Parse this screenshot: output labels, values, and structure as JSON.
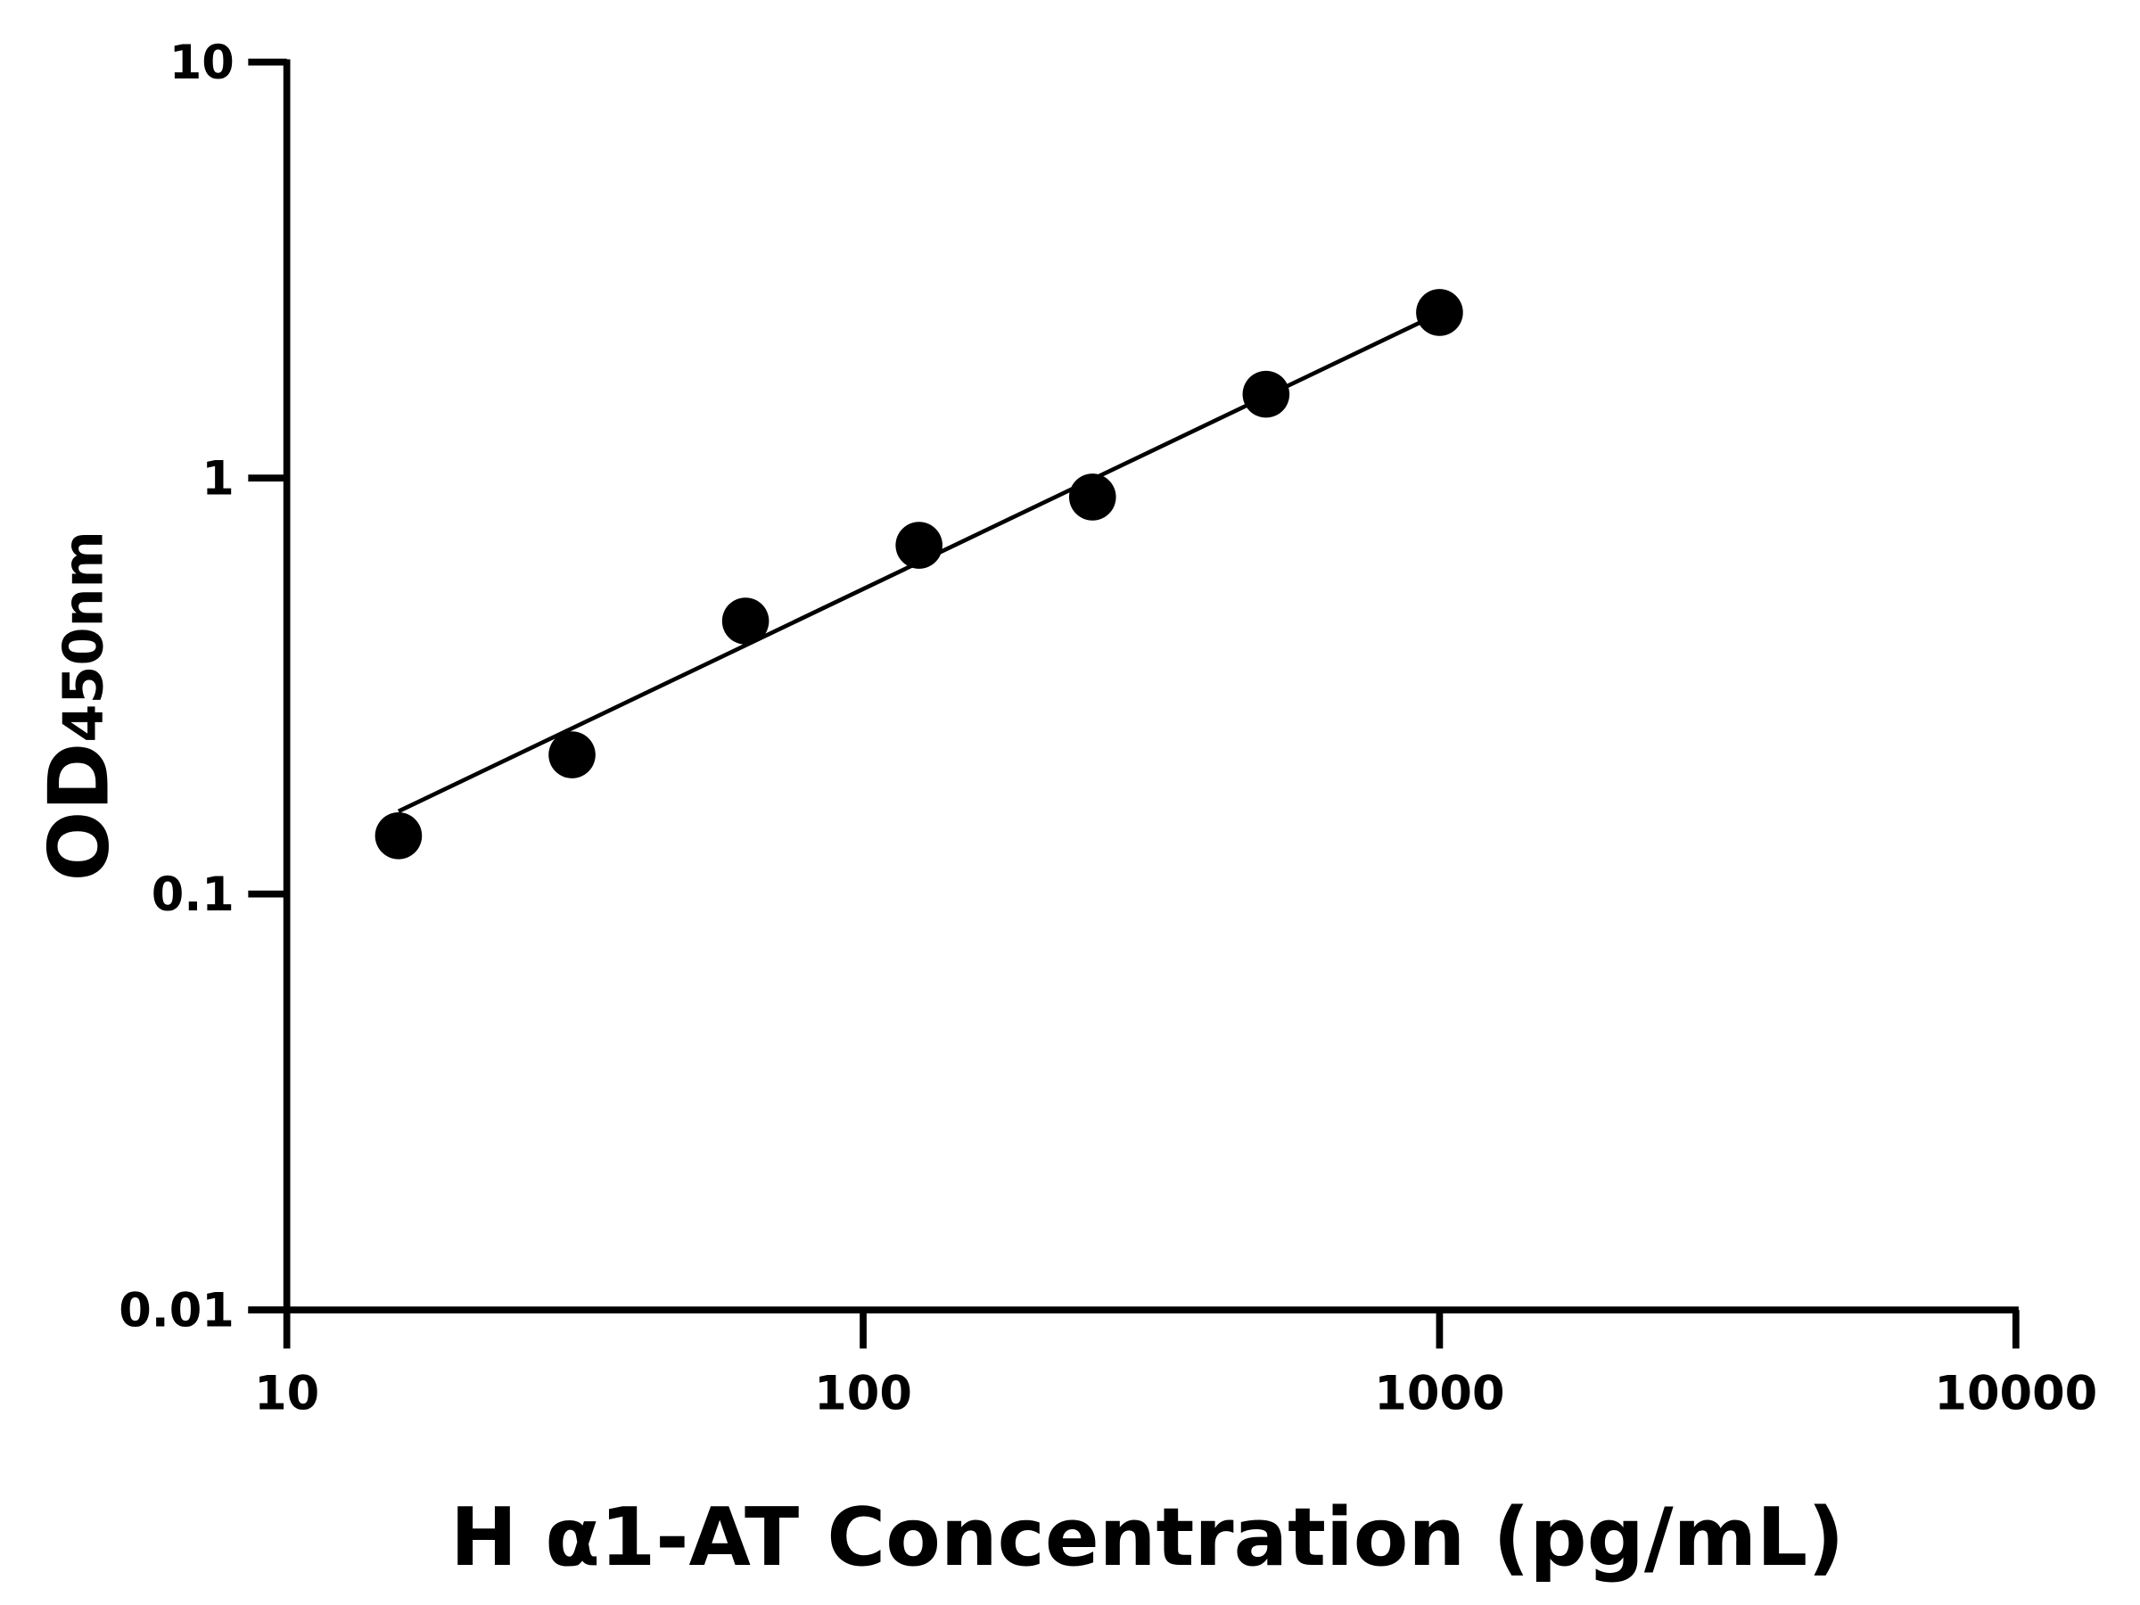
{
  "chart_data": {
    "type": "scatter",
    "title": "",
    "xlabel": "H α1-AT Concentration (pg/mL)",
    "ylabel_main": "OD",
    "ylabel_sub": "450nm",
    "x_scale": "log",
    "y_scale": "log",
    "xlim": [
      10,
      10000
    ],
    "ylim": [
      0.01,
      10
    ],
    "x_ticks": [
      "10",
      "100",
      "1000",
      "10000"
    ],
    "y_ticks": [
      "0.01",
      "0.1",
      "1",
      "10"
    ],
    "grid": false,
    "colors": {
      "points": "#000000",
      "line": "#000000"
    },
    "points": [
      {
        "x": 15.625,
        "y": 0.138
      },
      {
        "x": 31.25,
        "y": 0.216
      },
      {
        "x": 62.5,
        "y": 0.453
      },
      {
        "x": 125,
        "y": 0.689
      },
      {
        "x": 250,
        "y": 0.9
      },
      {
        "x": 500,
        "y": 1.59
      },
      {
        "x": 1000,
        "y": 2.5
      }
    ],
    "fit_line": [
      {
        "x": 15.625,
        "y": 0.158
      },
      {
        "x": 1000,
        "y": 2.49
      }
    ]
  }
}
